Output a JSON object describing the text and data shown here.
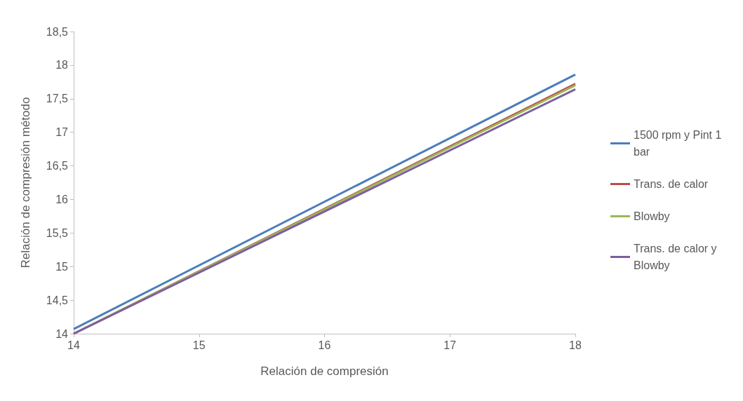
{
  "chart_data": {
    "type": "line",
    "xlabel": "Relación de compresión",
    "ylabel": "Relación de compresión método",
    "x": [
      14,
      18
    ],
    "series": [
      {
        "name": "1500 rpm y Pint 1 bar",
        "color": "#4a7ebb",
        "values": [
          14.07,
          17.86
        ]
      },
      {
        "name": "Trans. de calor",
        "color": "#be4b48",
        "values": [
          14.0,
          17.72
        ]
      },
      {
        "name": "Blowby",
        "color": "#98b954",
        "values": [
          14.0,
          17.7
        ]
      },
      {
        "name": "Trans. de calor y Blowby",
        "color": "#7d5fa0",
        "values": [
          14.0,
          17.64
        ]
      }
    ],
    "xlim": [
      14,
      18
    ],
    "xticks": [
      14,
      15,
      16,
      17,
      18
    ],
    "ylim": [
      14,
      18.5
    ],
    "yticks": [
      14,
      {
        "value": 14.5,
        "label": "14,5"
      },
      15,
      {
        "value": 15.5,
        "label": "15,5"
      },
      16,
      {
        "value": 16.5,
        "label": "16,5"
      },
      17,
      {
        "value": 17.5,
        "label": "17,5"
      },
      18,
      {
        "value": 18.5,
        "label": "18,5"
      }
    ],
    "grid": false,
    "legend": "right",
    "marker": "none",
    "line_style": "solid"
  }
}
